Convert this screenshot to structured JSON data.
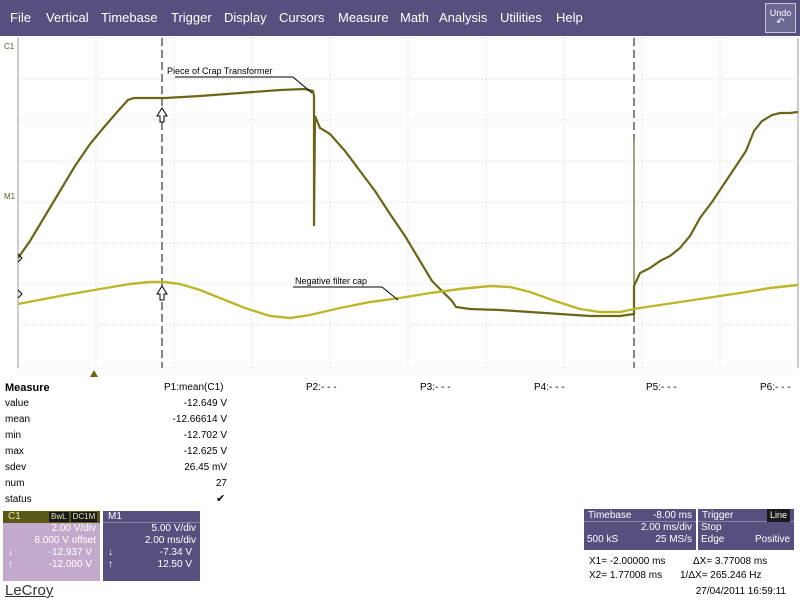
{
  "menu": [
    "File",
    "Vertical",
    "Timebase",
    "Trigger",
    "Display",
    "Cursors",
    "Measure",
    "Math",
    "Analysis",
    "Utilities",
    "Help"
  ],
  "undo_label": "Undo",
  "channel_tags": {
    "c1": "C1",
    "m1": "M1"
  },
  "annotations": {
    "transformer": "Piece of Crap Transformer",
    "filter_cap": "Negative filter cap"
  },
  "measure": {
    "title": "Measure",
    "row_labels": [
      "value",
      "mean",
      "min",
      "max",
      "sdev",
      "num",
      "status"
    ],
    "p1_header": "P1:mean(C1)",
    "p1_values": [
      "-12.649 V",
      "-12.66614 V",
      "-12.702 V",
      "-12.625 V",
      "26.45 mV",
      "27"
    ],
    "status_glyph": "✔",
    "other_params": [
      "P2:- - -",
      "P3:- - -",
      "P4:- - -",
      "P5:- - -",
      "P6:- - -"
    ]
  },
  "c1_box": {
    "label": "C1",
    "badges": [
      "BwL",
      "DC1M"
    ],
    "vdiv": "2.00 V/div",
    "offset": "8.000 V offset",
    "row1_icon": "↓",
    "row1_val": "-12.937 V",
    "row2_icon": "↑",
    "row2_val": "-12.000 V"
  },
  "m1_box": {
    "label": "M1",
    "vdiv": "5.00 V/div",
    "tdiv": "2.00 ms/div",
    "row1_icon": "↓",
    "row1_val": "-7.34 V",
    "row2_icon": "↑",
    "row2_val": "12.50 V"
  },
  "timebase": {
    "label": "Timebase",
    "delay": "-8.00 ms",
    "tdiv": "2.00 ms/div",
    "samples": "500 kS",
    "rate": "25 MS/s"
  },
  "trigger": {
    "label": "Trigger",
    "source": "Line",
    "mode": "Stop",
    "type": "Edge",
    "slope": "Positive"
  },
  "cursors": {
    "x1": "X1=  -2.00000 ms",
    "dx": "ΔX=  3.77008 ms",
    "x2": "X2=  1.77008 ms",
    "inv_dx": "1/ΔX=  265.246 Hz"
  },
  "logo": "LeCroy",
  "timestamp": "27/04/2011 16:59:11",
  "colors": {
    "menu_bg": "#55507e",
    "c1_trace": "#6b6518",
    "m1_trace": "#bdb52a",
    "grid": "#c9c9c9"
  }
}
